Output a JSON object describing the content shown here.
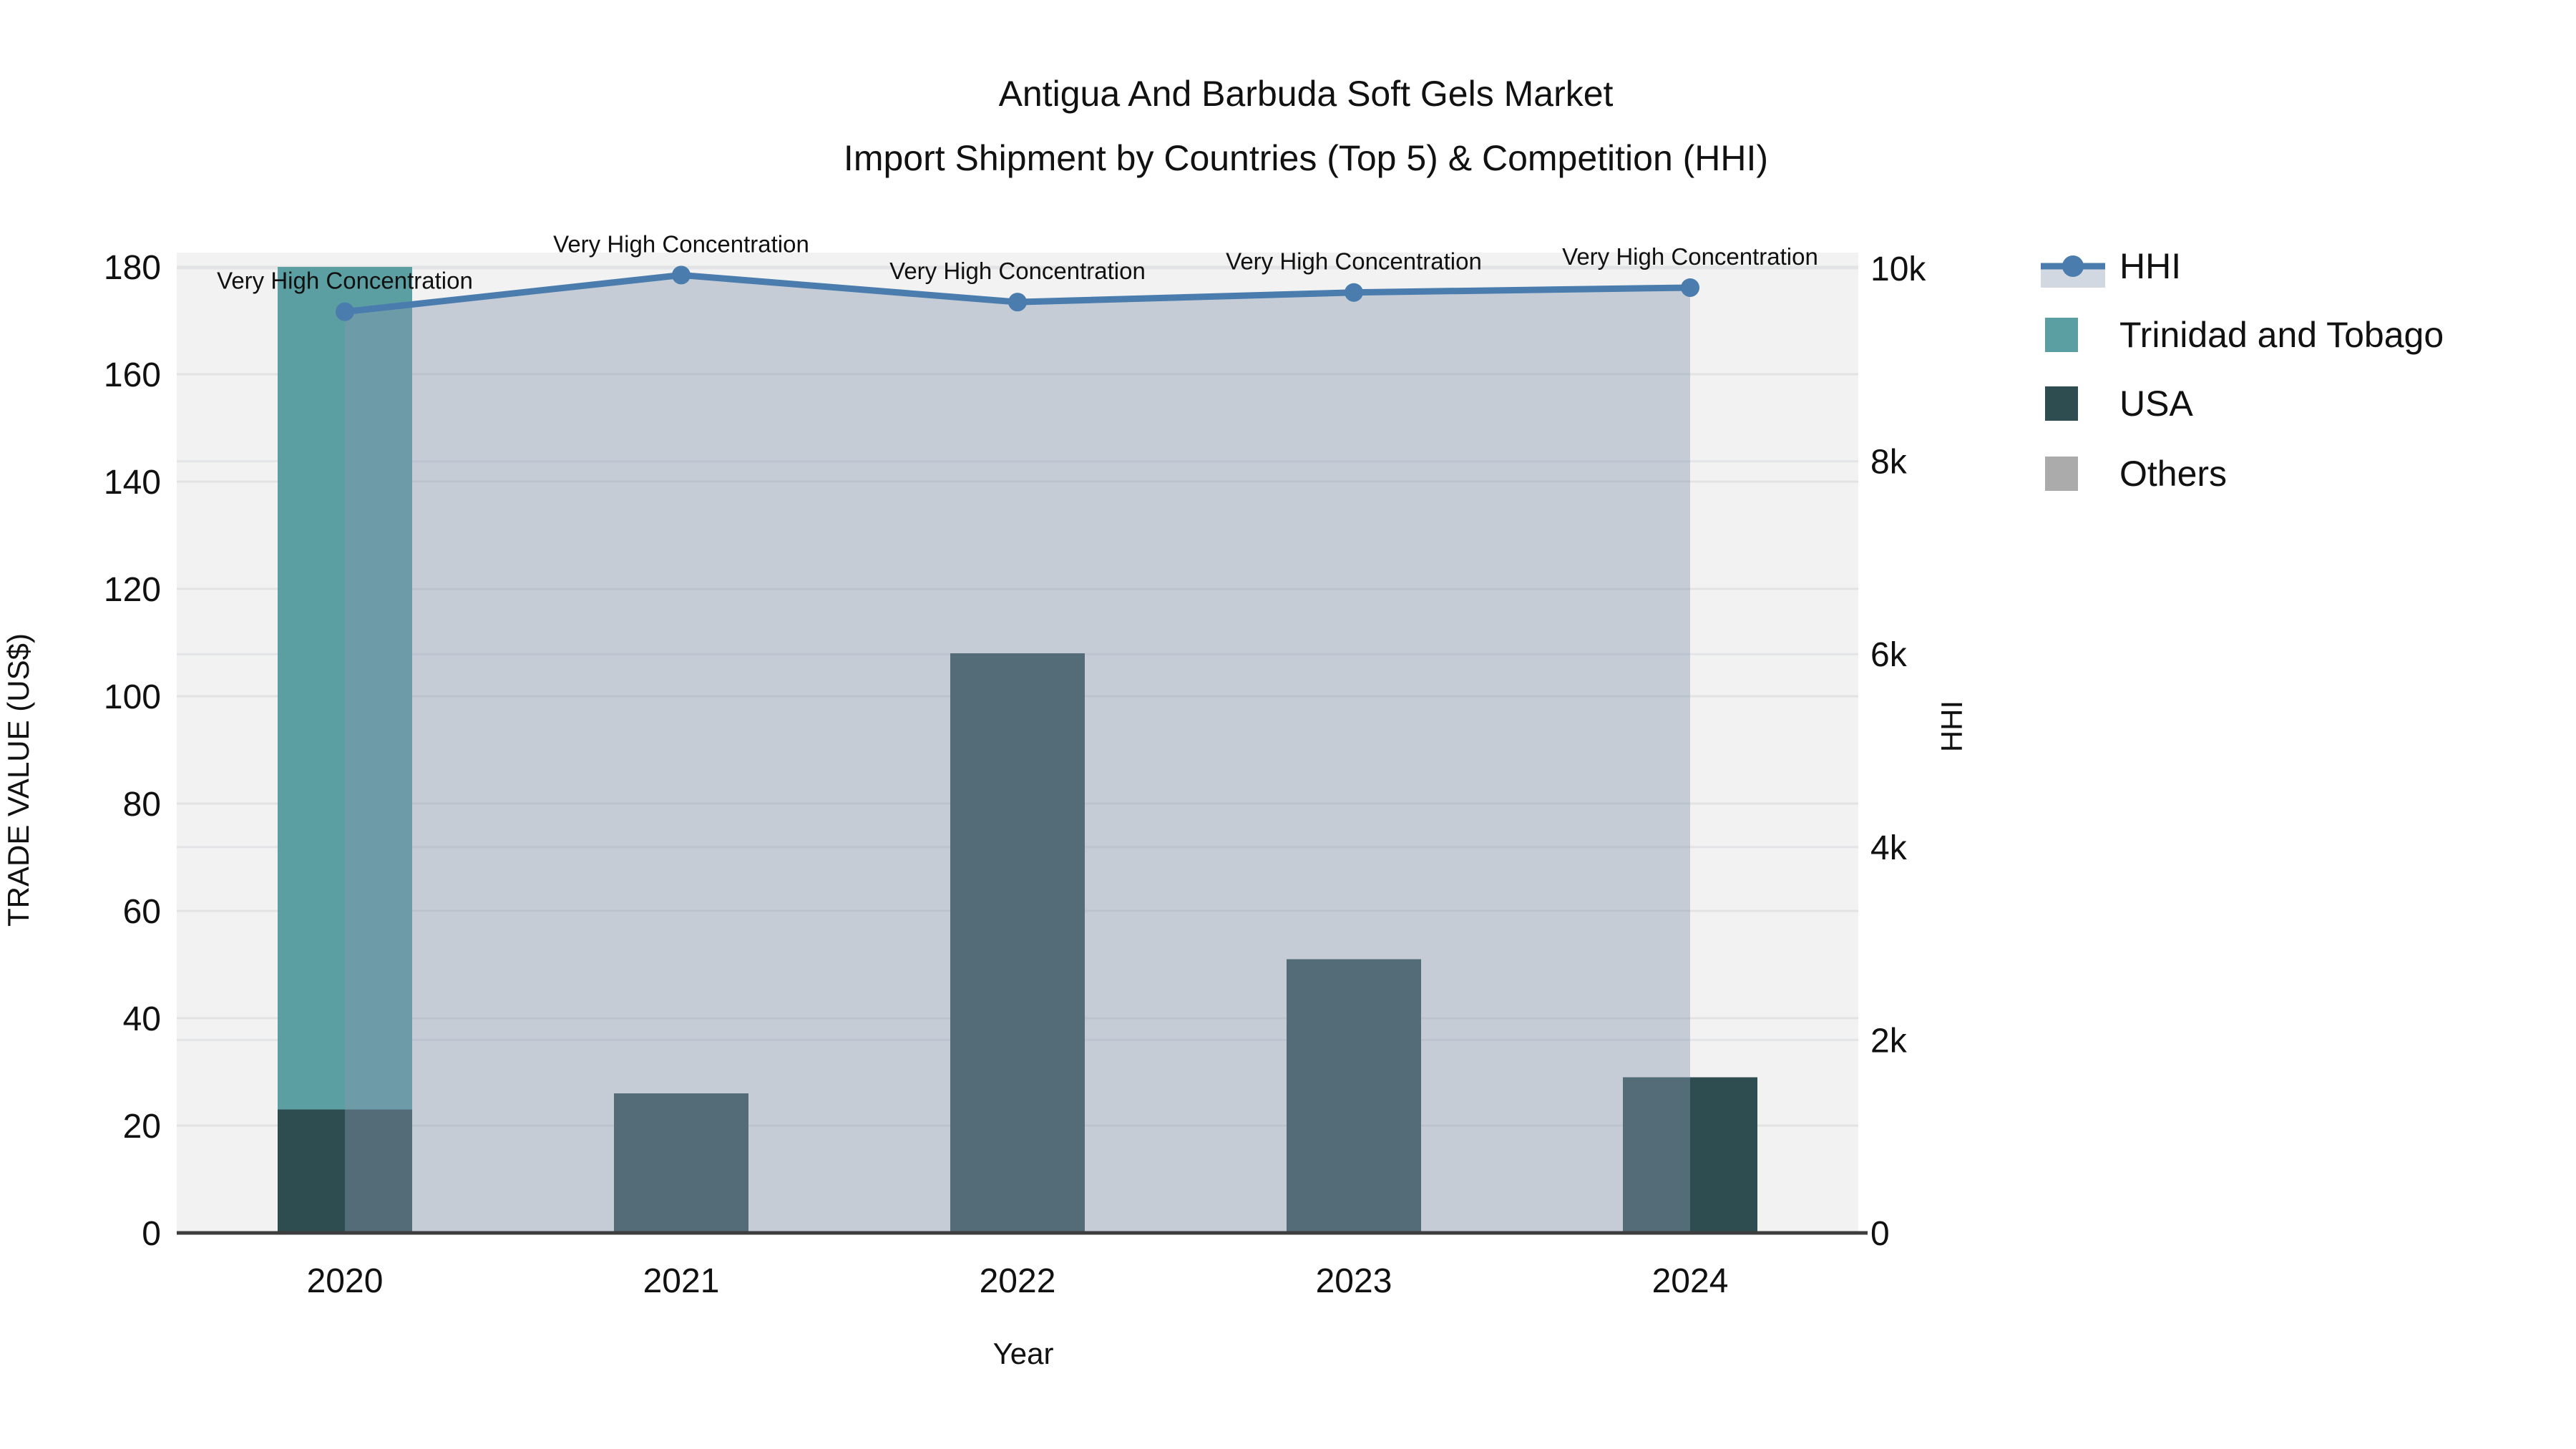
{
  "title": {
    "line1": "Antigua And Barbuda Soft Gels Market",
    "line2": "Import Shipment by Countries (Top 5) & Competition (HHI)"
  },
  "chart_data": {
    "type": "bar",
    "subtype": "stacked-bar-with-line-area",
    "categories": [
      "2020",
      "2021",
      "2022",
      "2023",
      "2024"
    ],
    "series": [
      {
        "name": "Trinidad and Tobago",
        "type": "bar",
        "axis": "left",
        "color": "#5B9FA3",
        "values": [
          157,
          0,
          0,
          0,
          0
        ]
      },
      {
        "name": "USA",
        "type": "bar",
        "axis": "left",
        "color": "#2E4D50",
        "values": [
          23,
          26,
          108,
          51,
          29
        ]
      },
      {
        "name": "Others",
        "type": "bar",
        "axis": "left",
        "color": "#ABABAB",
        "values": [
          0,
          0,
          0,
          0,
          0
        ]
      },
      {
        "name": "HHI",
        "type": "line",
        "axis": "right",
        "color": "#4A7CAE",
        "area_color": "rgba(137,152,177,0.42)",
        "values": [
          9550,
          9930,
          9650,
          9750,
          9800
        ]
      }
    ],
    "stack_order": [
      "USA",
      "Trinidad and Tobago",
      "Others"
    ],
    "annotations": [
      {
        "category": "2020",
        "text": "Very High Concentration"
      },
      {
        "category": "2021",
        "text": "Very High Concentration"
      },
      {
        "category": "2022",
        "text": "Very High Concentration"
      },
      {
        "category": "2023",
        "text": "Very High Concentration"
      },
      {
        "category": "2024",
        "text": "Very High Concentration"
      }
    ],
    "xlabel": "Year",
    "left_axis": {
      "title": "TRADE VALUE (US$)",
      "ticks": [
        0,
        20,
        40,
        60,
        80,
        100,
        120,
        140,
        160,
        180
      ],
      "range": [
        0,
        182.7
      ]
    },
    "right_axis": {
      "title": "HHI",
      "ticks": [
        {
          "v": 0,
          "label": "0"
        },
        {
          "v": 2000,
          "label": "2k"
        },
        {
          "v": 4000,
          "label": "4k"
        },
        {
          "v": 6000,
          "label": "6k"
        },
        {
          "v": 8000,
          "label": "8k"
        },
        {
          "v": 10000,
          "label": "10k"
        }
      ],
      "range": [
        0,
        10160
      ]
    },
    "legend": [
      {
        "label": "HHI",
        "symbol": "line",
        "color": "#4A7CAE",
        "band_color": "#d2d8e2"
      },
      {
        "label": "Trinidad and Tobago",
        "symbol": "square",
        "color": "#5B9FA3"
      },
      {
        "label": "USA",
        "symbol": "square",
        "color": "#2E4D50"
      },
      {
        "label": "Others",
        "symbol": "square",
        "color": "#ABABAB"
      }
    ],
    "grid": true,
    "legend_position": "top-right",
    "colors": {
      "plot_background": "#f2f2f2",
      "gridline": "#e2e2e2",
      "axis_line": "#3d3d3d",
      "text": "#111111"
    }
  }
}
